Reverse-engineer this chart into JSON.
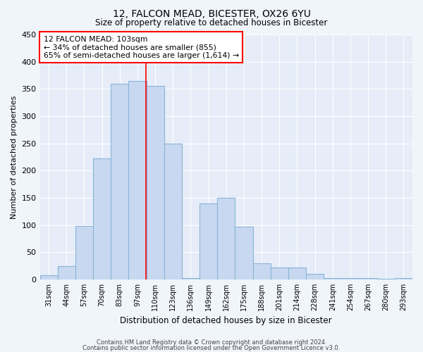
{
  "title": "12, FALCON MEAD, BICESTER, OX26 6YU",
  "subtitle": "Size of property relative to detached houses in Bicester",
  "xlabel": "Distribution of detached houses by size in Bicester",
  "ylabel": "Number of detached properties",
  "bar_color": "#c8d8f0",
  "bar_edge_color": "#8ab4d8",
  "categories": [
    "31sqm",
    "44sqm",
    "57sqm",
    "70sqm",
    "83sqm",
    "97sqm",
    "110sqm",
    "123sqm",
    "136sqm",
    "149sqm",
    "162sqm",
    "175sqm",
    "188sqm",
    "201sqm",
    "214sqm",
    "228sqm",
    "241sqm",
    "254sqm",
    "267sqm",
    "280sqm",
    "293sqm"
  ],
  "values": [
    8,
    25,
    98,
    222,
    360,
    365,
    355,
    250,
    3,
    140,
    150,
    97,
    30,
    22,
    22,
    10,
    3,
    2,
    3,
    1,
    2
  ],
  "ylim": [
    0,
    450
  ],
  "yticks": [
    0,
    50,
    100,
    150,
    200,
    250,
    300,
    350,
    400,
    450
  ],
  "annotation_title": "12 FALCON MEAD: 103sqm",
  "annotation_line1": "← 34% of detached houses are smaller (855)",
  "annotation_line2": "65% of semi-detached houses are larger (1,614) →",
  "footer1": "Contains HM Land Registry data © Crown copyright and database right 2024.",
  "footer2": "Contains public sector information licensed under the Open Government Licence v3.0.",
  "bg_color": "#f0f4fb",
  "plot_bg_color": "#e6edf8",
  "grid_color": "#ffffff"
}
